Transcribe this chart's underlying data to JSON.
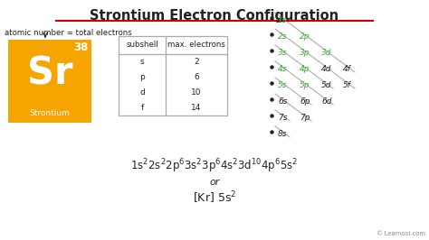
{
  "title": "Strontium Electron Configuration",
  "title_underline_color": "#cc0000",
  "bg_color": "#ffffff",
  "element_symbol": "Sr",
  "element_name": "Strontium",
  "atomic_number": "38",
  "element_box_color": "#f5a400",
  "element_text_color": "#ffffff",
  "atomic_label": "atomic number = total electrons",
  "table_subshell": [
    "s",
    "p",
    "d",
    "f"
  ],
  "table_max_electrons": [
    "2",
    "6",
    "10",
    "14"
  ],
  "table_header": [
    "subshell",
    "max. electrons"
  ],
  "diagonal_labels": [
    [
      "1s"
    ],
    [
      "2s",
      "2p"
    ],
    [
      "3s",
      "3p",
      "3d"
    ],
    [
      "4s",
      "4p",
      "4d",
      "4f"
    ],
    [
      "5s",
      "5p",
      "5d",
      "5f"
    ],
    [
      "6s",
      "6p",
      "6d"
    ],
    [
      "7s",
      "7p"
    ],
    [
      "8s"
    ]
  ],
  "diagonal_green_up_to": [
    1,
    2,
    3,
    2,
    2,
    0,
    0,
    0
  ],
  "or_text": "or",
  "learnool_text": "© Learnool.com",
  "green_color": "#3aaa3a",
  "dark_color": "#222222",
  "line_color": "#999999",
  "dot_color": "#444444"
}
